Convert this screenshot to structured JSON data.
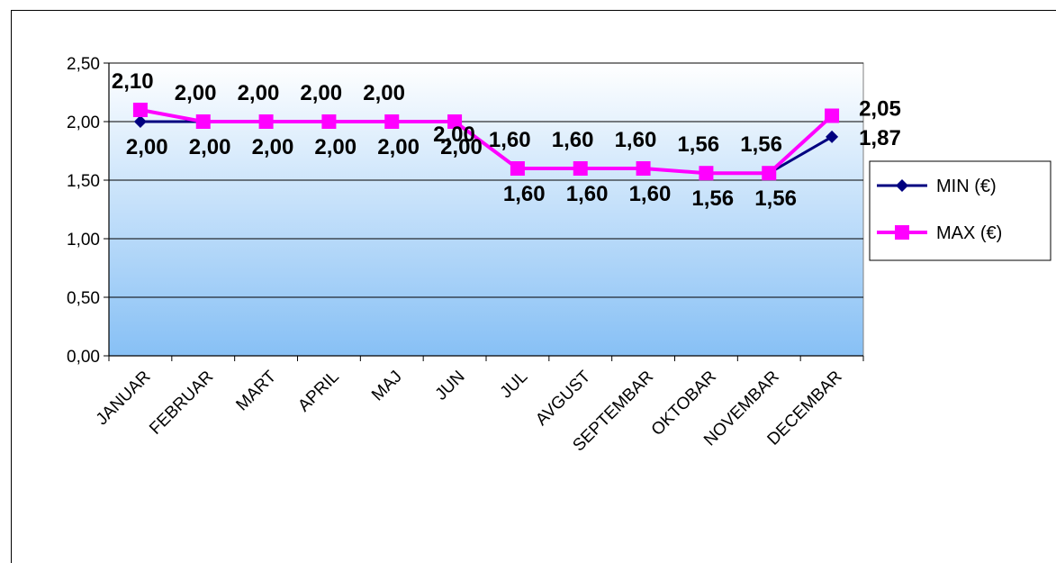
{
  "chart_data": {
    "type": "line",
    "categories": [
      "JANUAR",
      "FEBRUAR",
      "MART",
      "APRIL",
      "MAJ",
      "JUN",
      "JUL",
      "AVGUST",
      "SEPTEMBAR",
      "OKTOBAR",
      "NOVEMBAR",
      "DECEMBAR"
    ],
    "series": [
      {
        "name": "MIN (€)",
        "color": "#000080",
        "marker": "diamond",
        "values": [
          2.0,
          2.0,
          2.0,
          2.0,
          2.0,
          2.0,
          1.6,
          1.6,
          1.6,
          1.56,
          1.56,
          1.87
        ],
        "labels": [
          "2,00",
          "2,00",
          "2,00",
          "2,00",
          "2,00",
          "2,00",
          "1,60",
          "1,60",
          "1,60",
          "1,56",
          "1,56",
          "1,87"
        ]
      },
      {
        "name": "MAX (€)",
        "color": "#ff00ff",
        "marker": "square",
        "values": [
          2.1,
          2.0,
          2.0,
          2.0,
          2.0,
          2.0,
          1.6,
          1.6,
          1.6,
          1.56,
          1.56,
          2.05
        ],
        "labels": [
          "2,10",
          "2,00",
          "2,00",
          "2,00",
          "2,00",
          "2,00",
          "1,60",
          "1,60",
          "1,60",
          "1,56",
          "1,56",
          "2,05"
        ]
      }
    ],
    "y_ticks": [
      "0,00",
      "0,50",
      "1,00",
      "1,50",
      "2,00",
      "2,50"
    ],
    "ylim": [
      0,
      2.5
    ],
    "grid": true,
    "legend": "right"
  }
}
